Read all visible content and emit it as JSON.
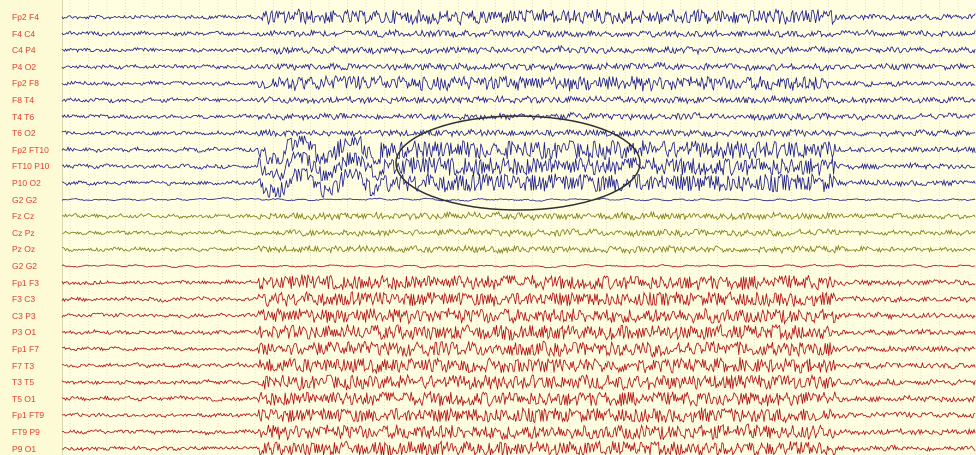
{
  "chart_data": {
    "type": "line",
    "title": "",
    "xlabel": "",
    "ylabel": "",
    "grid": "vertical dotted lines",
    "colors": {
      "right": "#1c1c8a",
      "midline": "#7c7c10",
      "left": "#b01010",
      "label": "#e04030",
      "grid": "#c8c6a8",
      "background": "#fffee0",
      "annotation": "#303030"
    },
    "annotation": "ellipse",
    "channels": [
      {
        "name": "Fp2 F4",
        "group": "right"
      },
      {
        "name": "F4 C4",
        "group": "right"
      },
      {
        "name": "C4 P4",
        "group": "right"
      },
      {
        "name": "P4 O2",
        "group": "right"
      },
      {
        "name": "Fp2 F8",
        "group": "right"
      },
      {
        "name": "F8 T4",
        "group": "right"
      },
      {
        "name": "T4 T6",
        "group": "right"
      },
      {
        "name": "T6 O2",
        "group": "right"
      },
      {
        "name": "Fp2 FT10",
        "group": "right"
      },
      {
        "name": "FT10 P10",
        "group": "right"
      },
      {
        "name": "P10 O2",
        "group": "right"
      },
      {
        "name": "G2 G2",
        "group": "right"
      },
      {
        "name": "Fz Cz",
        "group": "midline"
      },
      {
        "name": "Cz Pz",
        "group": "midline"
      },
      {
        "name": "Pz Oz",
        "group": "midline"
      },
      {
        "name": "G2 G2",
        "group": "left"
      },
      {
        "name": "Fp1 F3",
        "group": "left"
      },
      {
        "name": "F3 C3",
        "group": "left"
      },
      {
        "name": "C3 P3",
        "group": "left"
      },
      {
        "name": "P3 O1",
        "group": "left"
      },
      {
        "name": "Fp1 F7",
        "group": "left"
      },
      {
        "name": "F7 T3",
        "group": "left"
      },
      {
        "name": "T3 T5",
        "group": "left"
      },
      {
        "name": "T5 O1",
        "group": "left"
      },
      {
        "name": "Fp1 FT9",
        "group": "left"
      },
      {
        "name": "FT9 P9",
        "group": "left"
      },
      {
        "name": "P9 O1",
        "group": "left"
      }
    ]
  }
}
